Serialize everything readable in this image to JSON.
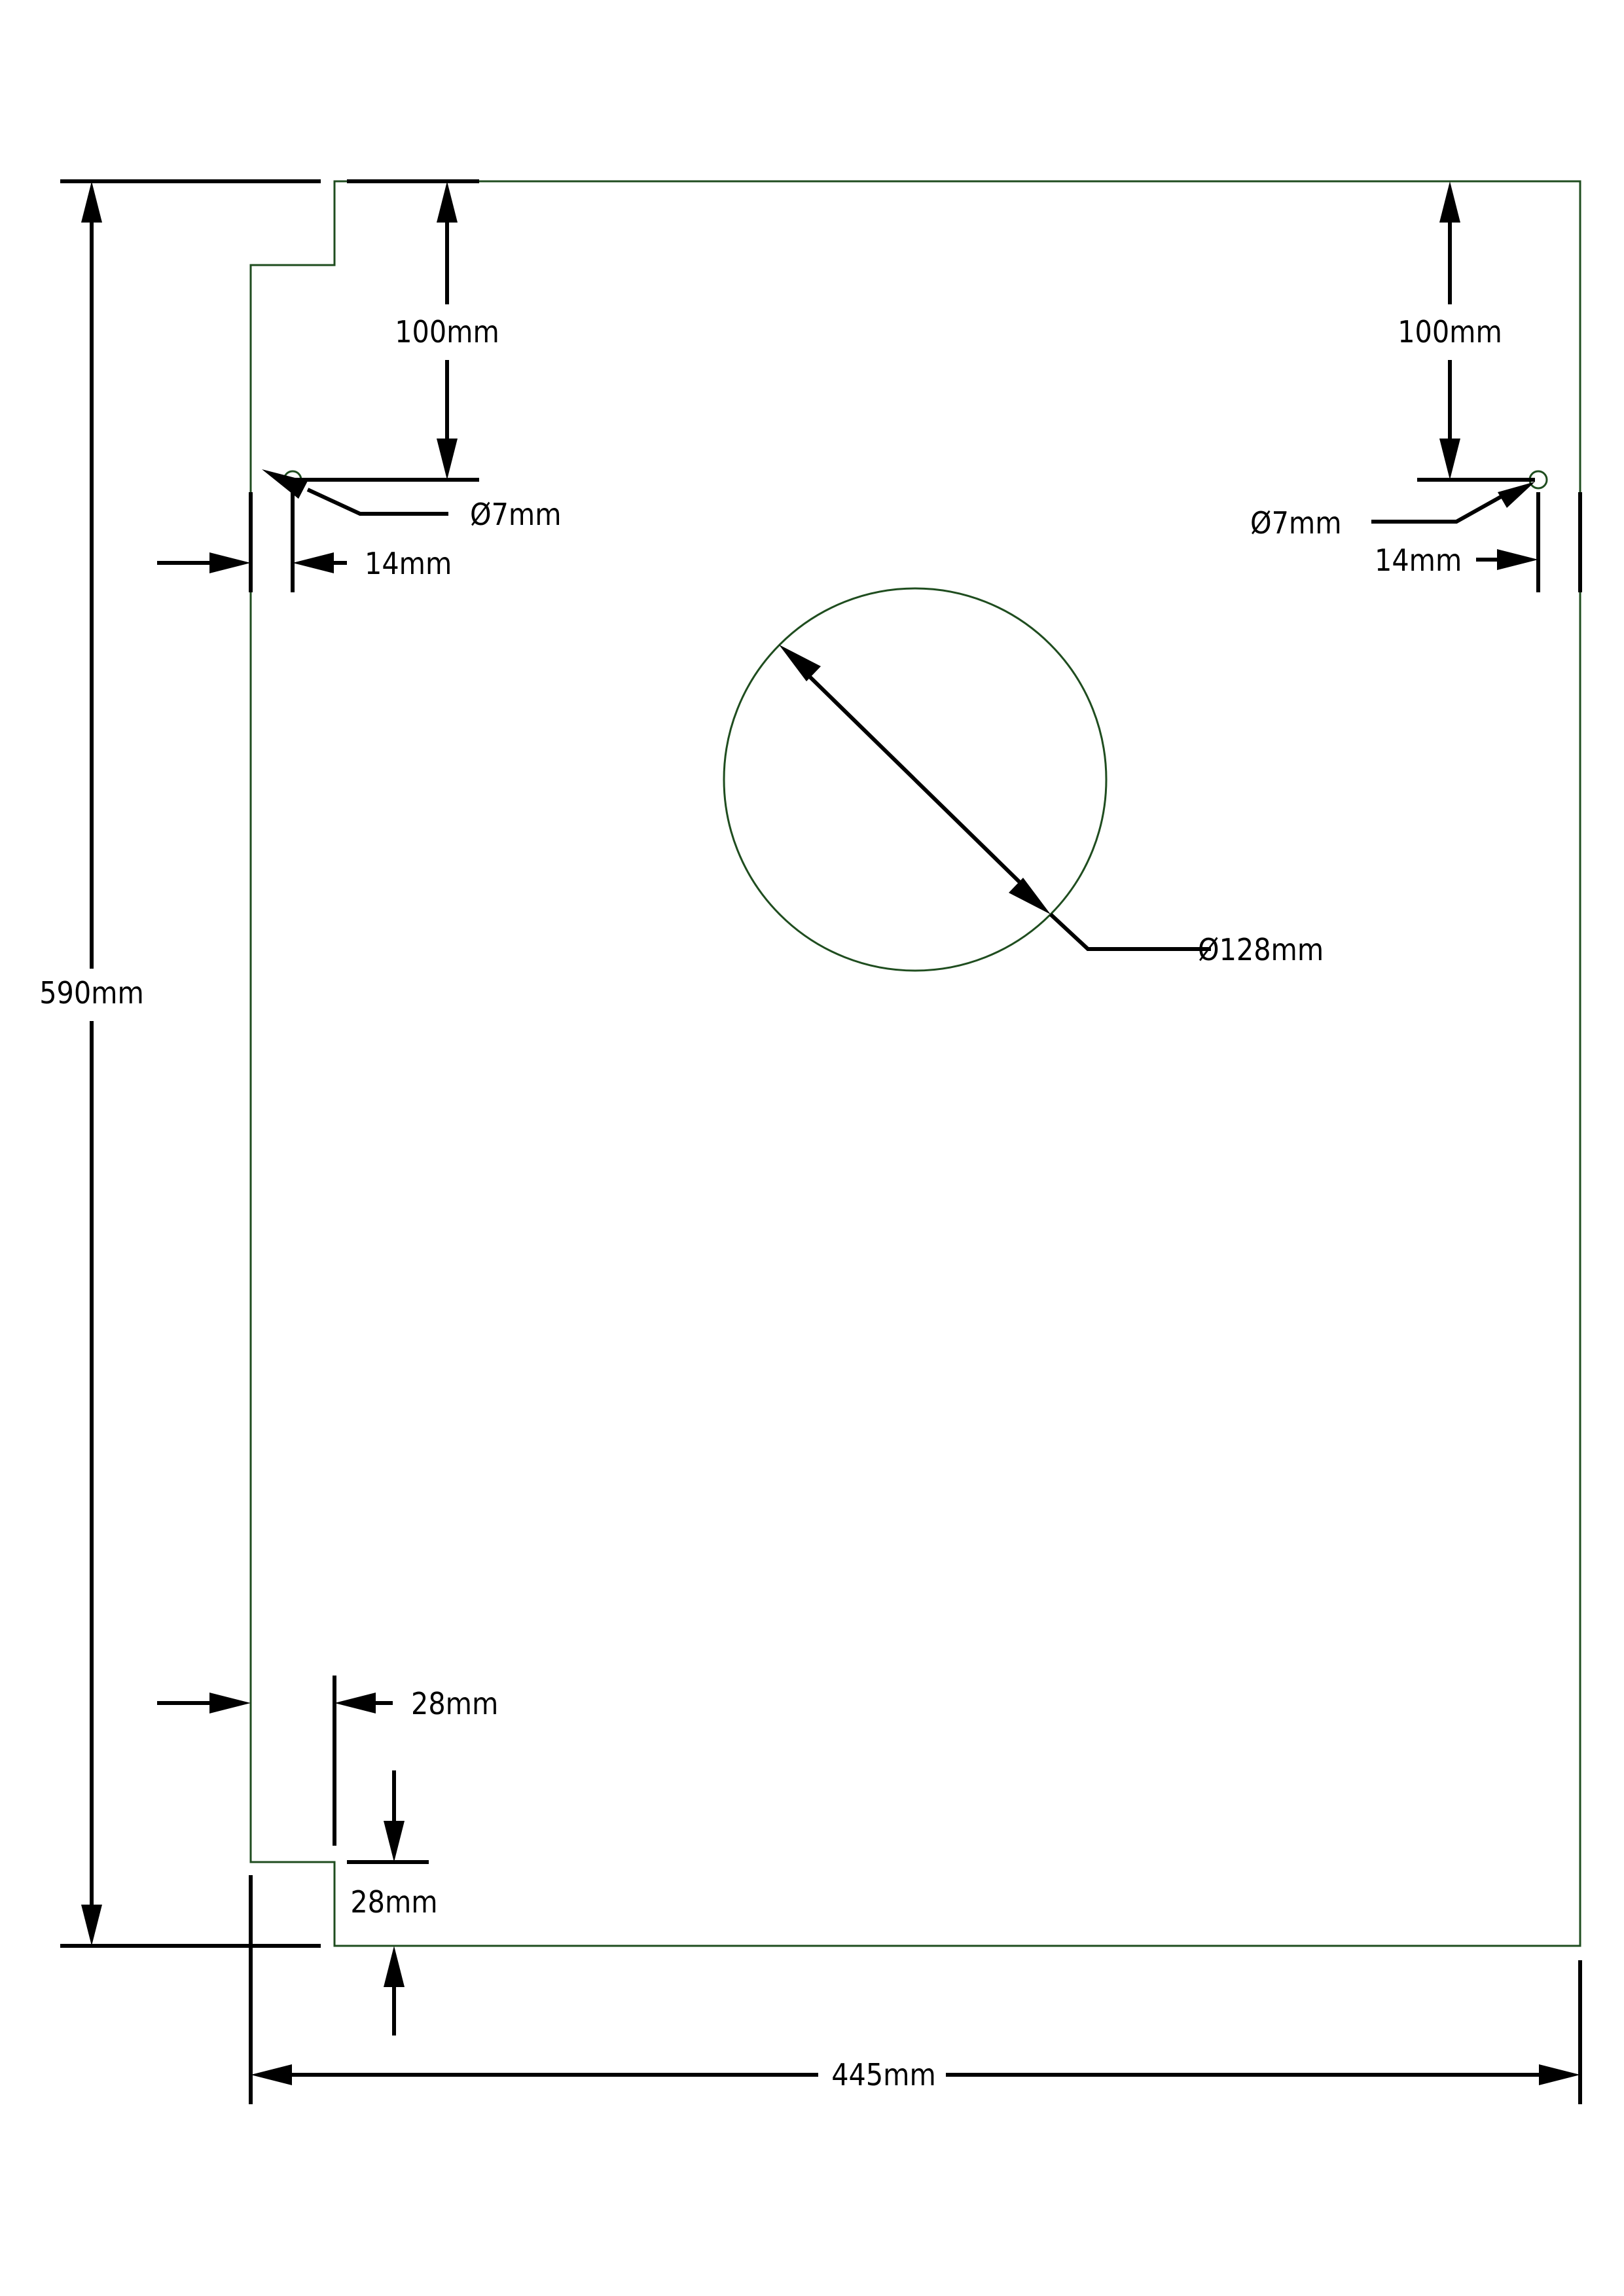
{
  "colors": {
    "outline": "#1f4d1f",
    "dimension": "#000000",
    "background": "#ffffff"
  },
  "dimensions": {
    "overall_height": "590mm",
    "overall_width": "445mm",
    "hole_left_from_top": "100mm",
    "hole_right_from_top": "100mm",
    "hole_left_diameter": "Ø7mm",
    "hole_right_diameter": "Ø7mm",
    "hole_left_from_edge": "14mm",
    "hole_right_from_edge": "14mm",
    "center_hole_diameter": "Ø128mm",
    "notch_width": "28mm",
    "notch_height": "28mm"
  }
}
